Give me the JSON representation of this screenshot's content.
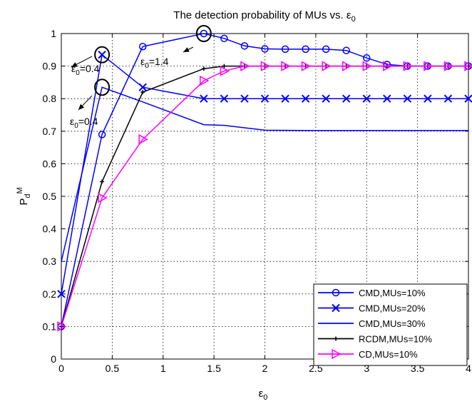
{
  "chart_data": {
    "type": "line",
    "title": "The detection probability of MUs vs. ε",
    "title_sub": "0",
    "xlabel": "ε",
    "xlabel_sub": "0",
    "ylabel": "P",
    "ylabel_sub": "d",
    "ylabel_sup": "M",
    "xlim": [
      0,
      4
    ],
    "ylim": [
      0,
      1
    ],
    "grid": "dotted",
    "legend_position": "bottom-right",
    "x_ticks": [
      "0",
      "0.5",
      "1",
      "1.5",
      "2",
      "2.5",
      "3",
      "3.5",
      "4"
    ],
    "y_ticks": [
      "0",
      "0.1",
      "0.2",
      "0.3",
      "0.4",
      "0.5",
      "0.6",
      "0.7",
      "0.8",
      "0.9",
      "1"
    ],
    "series": [
      {
        "name": "CMD,MUs=10%",
        "color": "#0000ff",
        "marker": "circle",
        "points": [
          [
            0,
            0.1
          ],
          [
            0.4,
            0.69
          ],
          [
            0.8,
            0.96
          ],
          [
            1.4,
            1.0
          ],
          [
            1.6,
            0.985
          ],
          [
            1.8,
            0.962
          ],
          [
            2.0,
            0.953
          ],
          [
            2.2,
            0.952
          ],
          [
            2.4,
            0.952
          ],
          [
            2.6,
            0.952
          ],
          [
            2.8,
            0.948
          ],
          [
            3.0,
            0.925
          ],
          [
            3.2,
            0.905
          ],
          [
            3.4,
            0.9
          ],
          [
            3.6,
            0.9
          ],
          [
            3.8,
            0.9
          ],
          [
            4.0,
            0.9
          ]
        ]
      },
      {
        "name": "CMD,MUs=20%",
        "color": "#0000ff",
        "marker": "x",
        "points": [
          [
            0,
            0.2
          ],
          [
            0.4,
            0.935
          ],
          [
            0.8,
            0.835
          ],
          [
            1.4,
            0.8
          ],
          [
            1.6,
            0.8
          ],
          [
            1.8,
            0.8
          ],
          [
            2.0,
            0.8
          ],
          [
            2.2,
            0.8
          ],
          [
            2.4,
            0.8
          ],
          [
            2.6,
            0.8
          ],
          [
            2.8,
            0.8
          ],
          [
            3.0,
            0.8
          ],
          [
            3.2,
            0.8
          ],
          [
            3.4,
            0.8
          ],
          [
            3.6,
            0.8
          ],
          [
            3.8,
            0.8
          ],
          [
            4.0,
            0.8
          ]
        ]
      },
      {
        "name": "CMD,MUs=30%",
        "color": "#0000ff",
        "marker": "none",
        "points": [
          [
            0,
            0.3
          ],
          [
            0.4,
            0.835
          ],
          [
            0.8,
            0.79
          ],
          [
            1.4,
            0.72
          ],
          [
            1.6,
            0.718
          ],
          [
            2.0,
            0.703
          ],
          [
            2.5,
            0.702
          ],
          [
            3.0,
            0.702
          ],
          [
            3.5,
            0.702
          ],
          [
            4.0,
            0.702
          ]
        ]
      },
      {
        "name": "RCDM,MUs=10%",
        "color": "#000000",
        "marker": "point",
        "points": [
          [
            0,
            0.1
          ],
          [
            0.4,
            0.545
          ],
          [
            0.8,
            0.82
          ],
          [
            1.4,
            0.892
          ],
          [
            1.6,
            0.9
          ],
          [
            1.8,
            0.9
          ],
          [
            2.0,
            0.9
          ],
          [
            2.2,
            0.9
          ],
          [
            2.4,
            0.9
          ],
          [
            2.6,
            0.9
          ],
          [
            2.8,
            0.9
          ],
          [
            3.0,
            0.9
          ],
          [
            3.2,
            0.9
          ],
          [
            3.4,
            0.9
          ],
          [
            3.6,
            0.9
          ],
          [
            3.8,
            0.9
          ],
          [
            4.0,
            0.9
          ]
        ]
      },
      {
        "name": "CD,MUs=10%",
        "color": "#ff00ff",
        "marker": "triangle-right",
        "points": [
          [
            0,
            0.1
          ],
          [
            0.4,
            0.495
          ],
          [
            0.8,
            0.675
          ],
          [
            1.4,
            0.855
          ],
          [
            1.6,
            0.885
          ],
          [
            1.8,
            0.9
          ],
          [
            2.0,
            0.9
          ],
          [
            2.2,
            0.9
          ],
          [
            2.4,
            0.9
          ],
          [
            2.6,
            0.9
          ],
          [
            2.8,
            0.9
          ],
          [
            3.0,
            0.9
          ],
          [
            3.2,
            0.9
          ],
          [
            3.4,
            0.9
          ],
          [
            3.6,
            0.9
          ],
          [
            3.8,
            0.9
          ],
          [
            4.0,
            0.9
          ]
        ]
      }
    ],
    "annotations": [
      {
        "label": "ε",
        "sub": "0",
        "value": "=0.4",
        "marked_point": [
          0.4,
          0.935
        ]
      },
      {
        "label": "ε",
        "sub": "0",
        "value": "=0.4",
        "marked_point": [
          0.4,
          0.835
        ]
      },
      {
        "label": "ε",
        "sub": "0",
        "value": "=1.4",
        "marked_point": [
          1.4,
          1.0
        ]
      }
    ]
  }
}
